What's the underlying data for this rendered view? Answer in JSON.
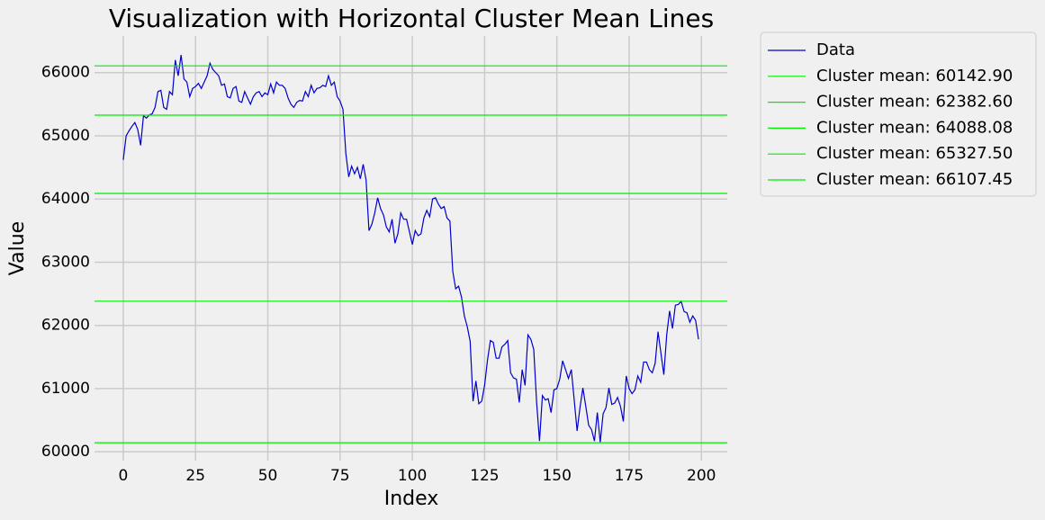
{
  "chart_data": {
    "type": "line",
    "title": "Visualization with Horizontal Cluster Mean Lines",
    "x_label": "Index",
    "y_label": "Value",
    "x": [
      0,
      1,
      2,
      3,
      4,
      5,
      6,
      7,
      8,
      9,
      10,
      11,
      12,
      13,
      14,
      15,
      16,
      17,
      18,
      19,
      20,
      21,
      22,
      23,
      24,
      25,
      26,
      27,
      28,
      29,
      30,
      31,
      32,
      33,
      34,
      35,
      36,
      37,
      38,
      39,
      40,
      41,
      42,
      43,
      44,
      45,
      46,
      47,
      48,
      49,
      50,
      51,
      52,
      53,
      54,
      55,
      56,
      57,
      58,
      59,
      60,
      61,
      62,
      63,
      64,
      65,
      66,
      67,
      68,
      69,
      70,
      71,
      72,
      73,
      74,
      75,
      76,
      77,
      78,
      79,
      80,
      81,
      82,
      83,
      84,
      85,
      86,
      87,
      88,
      89,
      90,
      91,
      92,
      93,
      94,
      95,
      96,
      97,
      98,
      99,
      100,
      101,
      102,
      103,
      104,
      105,
      106,
      107,
      108,
      109,
      110,
      111,
      112,
      113,
      114,
      115,
      116,
      117,
      118,
      119,
      120,
      121,
      122,
      123,
      124,
      125,
      126,
      127,
      128,
      129,
      130,
      131,
      132,
      133,
      134,
      135,
      136,
      137,
      138,
      139,
      140,
      141,
      142,
      143,
      144,
      145,
      146,
      147,
      148,
      149,
      150,
      151,
      152,
      153,
      154,
      155,
      156,
      157,
      158,
      159,
      160,
      161,
      162,
      163,
      164,
      165,
      166,
      167,
      168,
      169,
      170,
      171,
      172,
      173,
      174,
      175,
      176,
      177,
      178,
      179,
      180,
      181,
      182,
      183,
      184,
      185,
      186,
      187,
      188,
      189,
      190,
      191,
      192,
      193,
      194,
      195,
      196,
      197,
      198,
      199
    ],
    "series": [
      {
        "name": "Data",
        "color": "#0000cc",
        "values": [
          64620,
          65000,
          65080,
          65150,
          65210,
          65100,
          64850,
          65320,
          65280,
          65330,
          65350,
          65450,
          65700,
          65720,
          65450,
          65420,
          65700,
          65650,
          66200,
          65950,
          66280,
          65900,
          65850,
          65620,
          65750,
          65780,
          65830,
          65750,
          65850,
          65950,
          66150,
          66050,
          66000,
          65950,
          65800,
          65820,
          65620,
          65600,
          65750,
          65780,
          65550,
          65530,
          65700,
          65600,
          65500,
          65620,
          65680,
          65700,
          65620,
          65680,
          65650,
          65820,
          65680,
          65850,
          65800,
          65800,
          65750,
          65600,
          65500,
          65450,
          65530,
          65560,
          65550,
          65700,
          65620,
          65800,
          65680,
          65750,
          65760,
          65800,
          65780,
          65950,
          65800,
          65850,
          65620,
          65550,
          65420,
          64720,
          64350,
          64520,
          64400,
          64500,
          64320,
          64550,
          64300,
          63500,
          63600,
          63780,
          64020,
          63850,
          63750,
          63560,
          63480,
          63680,
          63300,
          63450,
          63780,
          63680,
          63680,
          63480,
          63280,
          63500,
          63420,
          63450,
          63700,
          63820,
          63720,
          64000,
          64020,
          63920,
          63850,
          63880,
          63700,
          63650,
          62850,
          62580,
          62620,
          62450,
          62150,
          61980,
          61750,
          60800,
          61120,
          60760,
          60800,
          61050,
          61450,
          61760,
          61730,
          61480,
          61480,
          61660,
          61700,
          61760,
          61250,
          61170,
          61150,
          60780,
          61300,
          61050,
          61850,
          61780,
          61620,
          60780,
          60170,
          60890,
          60820,
          60840,
          60620,
          60980,
          61000,
          61150,
          61440,
          61300,
          61160,
          61300,
          60820,
          60330,
          60700,
          61010,
          60720,
          60420,
          60350,
          60170,
          60620,
          60150,
          60600,
          60700,
          61010,
          60750,
          60770,
          60860,
          60720,
          60480,
          61200,
          61000,
          60920,
          60980,
          61200,
          61100,
          61420,
          61420,
          61300,
          61250,
          61400,
          61900,
          61560,
          61220,
          61850,
          62230,
          61950,
          62320,
          62330,
          62380,
          62220,
          62200,
          62050,
          62150,
          62080,
          61780
        ]
      }
    ],
    "hlines": [
      {
        "name": "Cluster mean: 60142.90",
        "value": 60142.9,
        "color": "#00ee00"
      },
      {
        "name": "Cluster mean: 62382.60",
        "value": 62382.6,
        "color": "#00ee00"
      },
      {
        "name": "Cluster mean: 64088.08",
        "value": 64088.08,
        "color": "#00ee00"
      },
      {
        "name": "Cluster mean: 65327.50",
        "value": 65327.5,
        "color": "#00ee00"
      },
      {
        "name": "Cluster mean: 66107.45",
        "value": 66107.45,
        "color": "#00ee00"
      }
    ],
    "xlim": [
      -9.95,
      208.95
    ],
    "ylim": [
      59860,
      66580
    ],
    "xticks": [
      0,
      25,
      50,
      75,
      100,
      125,
      150,
      175,
      200
    ],
    "yticks": [
      60000,
      61000,
      62000,
      63000,
      64000,
      65000,
      66000
    ],
    "grid": true,
    "legend": "outside upper right"
  }
}
